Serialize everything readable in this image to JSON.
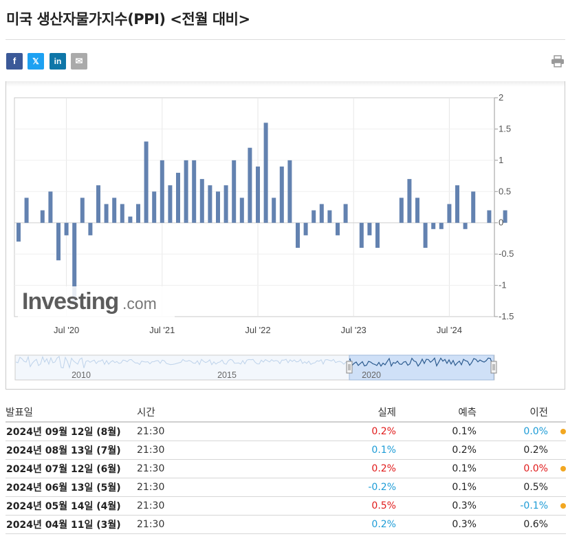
{
  "page": {
    "title": "미국 생산자물가지수(PPI) <전월 대비>"
  },
  "share": {
    "facebook": "f",
    "twitter": "𝕏",
    "linkedin": "in",
    "email": "✉"
  },
  "colors": {
    "bar": "#6382b0",
    "bar_dark": "#4f6fa3",
    "red": "#e01919",
    "blue": "#1c9bd6",
    "dot": "#f2a721"
  },
  "chart_data": {
    "type": "bar",
    "title": "",
    "ylim": [
      -1.5,
      2
    ],
    "y_ticks": [
      "2",
      "1.5",
      "1",
      "0.5",
      "0",
      "-0.5",
      "-1",
      "-1.5"
    ],
    "y_tick_values": [
      2,
      1.5,
      1,
      0.5,
      0,
      -0.5,
      -1,
      -1.5
    ],
    "x_tick_labels": [
      "Jul '20",
      "Jul '21",
      "Jul '22",
      "Jul '23",
      "Jul '24"
    ],
    "x_tick_months": [
      6,
      18,
      30,
      42,
      54
    ],
    "start": "2020-01",
    "values": [
      -0.3,
      0.4,
      null,
      0.2,
      0.5,
      -0.6,
      -0.2,
      -1.3,
      0.4,
      -0.2,
      0.6,
      0.3,
      0.4,
      0.3,
      0.1,
      0.3,
      1.3,
      0.5,
      1.0,
      0.6,
      0.8,
      1.0,
      1.0,
      0.7,
      0.6,
      0.5,
      0.6,
      1.0,
      0.4,
      1.2,
      0.9,
      1.6,
      0.4,
      0.9,
      1.0,
      -0.4,
      -0.2,
      0.2,
      0.3,
      0.2,
      -0.2,
      0.3,
      null,
      -0.4,
      -0.2,
      -0.4,
      null,
      null,
      0.4,
      0.7,
      0.4,
      -0.4,
      -0.1,
      -0.1,
      0.3,
      0.6,
      -0.1,
      0.5,
      null,
      0.2,
      null,
      0.2
    ],
    "watermark": "Investing",
    "watermark_suffix": ".com",
    "navigator_labels": [
      "2010",
      "2015",
      "2020"
    ]
  },
  "table": {
    "headers": {
      "date": "발표일",
      "time": "시간",
      "actual": "실제",
      "forecast": "예측",
      "previous": "이전"
    },
    "rows": [
      {
        "date": "2024년 09월 12일 (8월)",
        "time": "21:30",
        "actual": "0.2%",
        "forecast": "0.1%",
        "previous": "0.0%",
        "a_color": "red",
        "p_color": "blue",
        "revised": true
      },
      {
        "date": "2024년 08월 13일 (7월)",
        "time": "21:30",
        "actual": "0.1%",
        "forecast": "0.2%",
        "previous": "0.2%",
        "a_color": "blue",
        "p_color": "blk",
        "revised": false
      },
      {
        "date": "2024년 07월 12일 (6월)",
        "time": "21:30",
        "actual": "0.2%",
        "forecast": "0.1%",
        "previous": "0.0%",
        "a_color": "red",
        "p_color": "red",
        "revised": true
      },
      {
        "date": "2024년 06월 13일 (5월)",
        "time": "21:30",
        "actual": "-0.2%",
        "forecast": "0.1%",
        "previous": "0.5%",
        "a_color": "blue",
        "p_color": "blk",
        "revised": false
      },
      {
        "date": "2024년 05월 14일 (4월)",
        "time": "21:30",
        "actual": "0.5%",
        "forecast": "0.3%",
        "previous": "-0.1%",
        "a_color": "red",
        "p_color": "blue",
        "revised": true
      },
      {
        "date": "2024년 04월 11일 (3월)",
        "time": "21:30",
        "actual": "0.2%",
        "forecast": "0.3%",
        "previous": "0.6%",
        "a_color": "blue",
        "p_color": "blk",
        "revised": false
      }
    ]
  }
}
